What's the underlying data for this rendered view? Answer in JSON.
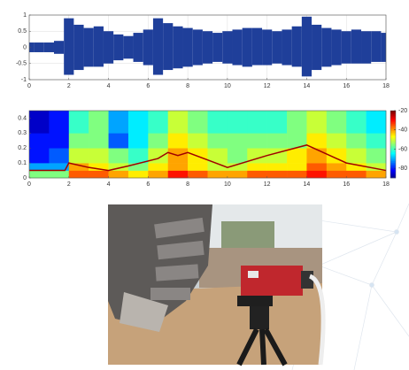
{
  "chart_data": [
    {
      "type": "waveform",
      "x": [
        0,
        0.5,
        1,
        1.5,
        2,
        2.5,
        3,
        3.5,
        4,
        4.5,
        5,
        5.5,
        6,
        6.5,
        7,
        7.5,
        8,
        8.5,
        9,
        9.5,
        10,
        10.5,
        11,
        11.5,
        12,
        12.5,
        13,
        13.5,
        14,
        14.5,
        15,
        15.5,
        16,
        16.5,
        17,
        17.5,
        18
      ],
      "series": [
        {
          "color": "#1f3f9a",
          "values": [
            0.15,
            0.15,
            0.15,
            0.2,
            0.9,
            0.7,
            0.6,
            0.65,
            0.5,
            0.4,
            0.35,
            0.45,
            0.55,
            0.9,
            0.75,
            0.65,
            0.6,
            0.55,
            0.5,
            0.45,
            0.5,
            0.55,
            0.6,
            0.6,
            0.55,
            0.5,
            0.55,
            0.65,
            0.95,
            0.7,
            0.6,
            0.55,
            0.5,
            0.55,
            0.5,
            0.5,
            0.45
          ]
        },
        {
          "color": "#1f3f9a",
          "values": [
            -0.15,
            -0.15,
            -0.15,
            -0.2,
            -0.85,
            -0.7,
            -0.6,
            -0.6,
            -0.5,
            -0.4,
            -0.35,
            -0.45,
            -0.55,
            -0.85,
            -0.7,
            -0.65,
            -0.6,
            -0.55,
            -0.5,
            -0.45,
            -0.5,
            -0.55,
            -0.6,
            -0.55,
            -0.55,
            -0.5,
            -0.55,
            -0.6,
            -0.9,
            -0.7,
            -0.6,
            -0.55,
            -0.5,
            -0.5,
            -0.5,
            -0.45,
            -0.45
          ]
        }
      ],
      "xlim": [
        0,
        18
      ],
      "xticks": [
        0,
        2,
        4,
        6,
        8,
        10,
        12,
        14,
        16,
        18
      ],
      "ylim": [
        -1,
        1
      ],
      "yticks": [
        -1,
        -0.5,
        0,
        0.5,
        1
      ],
      "grid": true
    },
    {
      "type": "heatmap",
      "x_edges": [
        0,
        1,
        2,
        3,
        4,
        5,
        6,
        7,
        8,
        9,
        10,
        11,
        12,
        13,
        14,
        15,
        16,
        17,
        18
      ],
      "y_edges": [
        0,
        0.05,
        0.1,
        0.2,
        0.3,
        0.45
      ],
      "z": [
        [
          -55,
          -55,
          -35,
          -35,
          -40,
          -45,
          -40,
          -30,
          -35,
          -40,
          -40,
          -35,
          -35,
          -35,
          -30,
          -35,
          -35,
          -40
        ],
        [
          -70,
          -70,
          -40,
          -45,
          -50,
          -55,
          -45,
          -40,
          -45,
          -50,
          -50,
          -45,
          -45,
          -45,
          -35,
          -40,
          -45,
          -50
        ],
        [
          -80,
          -75,
          -50,
          -50,
          -55,
          -60,
          -50,
          -40,
          -45,
          -50,
          -55,
          -50,
          -50,
          -45,
          -40,
          -45,
          -50,
          -55
        ],
        [
          -80,
          -80,
          -55,
          -55,
          -75,
          -65,
          -55,
          -45,
          -50,
          -55,
          -55,
          -55,
          -55,
          -55,
          -45,
          -50,
          -55,
          -60
        ],
        [
          -85,
          -80,
          -60,
          -55,
          -70,
          -65,
          -60,
          -50,
          -55,
          -60,
          -60,
          -60,
          -60,
          -55,
          -50,
          -55,
          -60,
          -65
        ]
      ],
      "series": [
        {
          "color": "#a00000",
          "x": [
            0,
            1.8,
            2,
            3,
            4,
            5,
            6.5,
            7,
            7.5,
            8,
            9,
            10,
            12,
            14,
            16,
            18
          ],
          "values": [
            0.05,
            0.05,
            0.1,
            0.07,
            0.05,
            0.08,
            0.13,
            0.17,
            0.15,
            0.17,
            0.12,
            0.07,
            0.15,
            0.22,
            0.1,
            0.05
          ]
        }
      ],
      "clim": [
        -90,
        -20
      ],
      "colorbar_ticks": [
        -20,
        -40,
        -60,
        -80
      ],
      "xlim": [
        0,
        18
      ],
      "xticks": [
        0,
        2,
        4,
        6,
        8,
        10,
        12,
        14,
        16,
        18
      ],
      "ylim": [
        0,
        0.45
      ],
      "yticks": [
        0,
        0.1,
        0.2,
        0.3,
        0.4
      ]
    }
  ]
}
